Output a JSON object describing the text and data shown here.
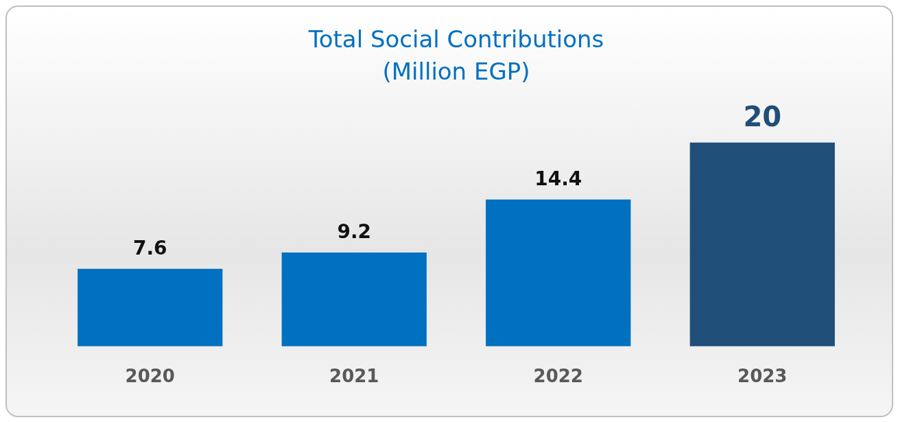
{
  "chart_data": {
    "type": "bar",
    "title": "Total Social Contributions",
    "subtitle": "(Million EGP)",
    "categories": [
      "2020",
      "2021",
      "2022",
      "2023"
    ],
    "values": [
      7.6,
      9.2,
      14.4,
      20
    ],
    "colors": [
      "#0070c0",
      "#0070c0",
      "#0070c0",
      "#1f4e79"
    ],
    "data_labels": true,
    "grid": false,
    "legend": false
  }
}
